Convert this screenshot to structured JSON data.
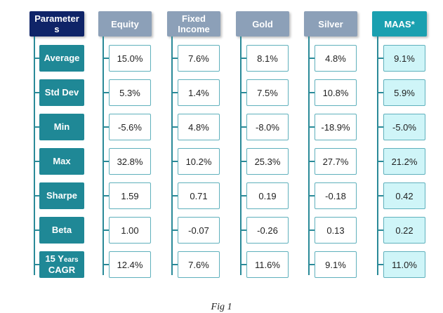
{
  "headers": {
    "param_a": "Parameter",
    "param_b": "s",
    "equity": "Equity",
    "fixed_a": "Fixed",
    "fixed_b": "Income",
    "gold": "Gold",
    "silver": "Silver",
    "maas": "MAAS*"
  },
  "rows": [
    {
      "label": "Average",
      "equity": "15.0%",
      "fixed": "7.6%",
      "gold": "8.1%",
      "silver": "4.8%",
      "maas": "9.1%"
    },
    {
      "label": "Std Dev",
      "equity": "5.3%",
      "fixed": "1.4%",
      "gold": "7.5%",
      "silver": "10.8%",
      "maas": "5.9%"
    },
    {
      "label": "Min",
      "equity": "-5.6%",
      "fixed": "4.8%",
      "gold": "-8.0%",
      "silver": "-18.9%",
      "maas": "-5.0%"
    },
    {
      "label": "Max",
      "equity": "32.8%",
      "fixed": "10.2%",
      "gold": "25.3%",
      "silver": "27.7%",
      "maas": "21.2%"
    },
    {
      "label": "Sharpe",
      "equity": "1.59",
      "fixed": "0.71",
      "gold": "0.19",
      "silver": "-0.18",
      "maas": "0.42"
    },
    {
      "label": "Beta",
      "equity": "1.00",
      "fixed": "-0.07",
      "gold": "-0.26",
      "silver": "0.13",
      "maas": "0.22"
    },
    {
      "label_a": "15 Y",
      "label_small": "ears",
      "label_b": "CAGR",
      "equity": "12.4%",
      "fixed": "7.6%",
      "gold": "11.6%",
      "silver": "9.1%",
      "maas": "11.0%"
    }
  ],
  "caption": "Fig 1"
}
